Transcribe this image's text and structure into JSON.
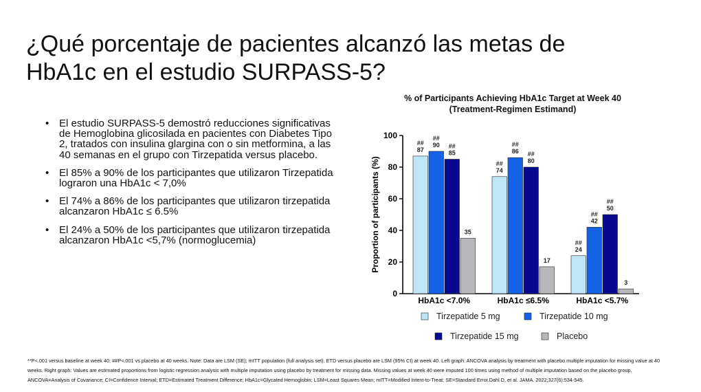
{
  "page": {
    "title": "¿Qué porcentaje de pacientes alcanzó las metas de HbA1c en el estudio SURPASS-5?",
    "bullet_symbol": "•",
    "bullets": [
      "El estudio SURPASS-5 demostró reducciones significativas de Hemoglobina glicosilada en pacientes con Diabetes Tipo 2, tratados con insulina glargina con o sin metformina, a las 40 semanas en el grupo con Tirzepatida versus placebo.",
      "El  85% a 90% de los participantes que utilizaron Tirzepatida lograron una HbA1c < 7,0%",
      "El 74% a 86% de los participantes que utilizaron tirzepatida alcanzaron HbA1c ≤ 6.5%",
      "El 24% a 50% de los participantes que utilizaron tirzepatida alcanzaron HbA1c <5,7% (normoglucemia)"
    ],
    "footnote": "**P<.001 versus baseline at week 40; ##P<.001 vs placebo at 40 weeks. Note: Data are LSM (SE); mITT population (full analysis set). ETD versus placebo are LSM (95% CI) at week 40. Left graph: ANCOVA analysis by treatment with placebo multiple imputation for missing value at 40 weeks. Right graph: Values are estimated proportions from logistic regression analysis with multiple imputation using placebo by treatment for missing data. Missing values at week 40 were imputed 100 times using method of multiple imputation based on the placebo group. ANCOVA=Analysis of Covariance; CI=Confidence Interval; ETD=Estimated Treatment Difference; HbA1c=Glycated Hemoglobin; LSM=Least Squares Mean; mITT=Modified Intent-to-Treat; SE=Standard Error.Dahl D, et al. JAMA. 2022;327(6):534-545."
  },
  "chart_data": {
    "type": "bar",
    "title": "% of Participants Achieving HbA1c Target at Week 40",
    "subtitle": "(Treatment-Regimen Estimand)",
    "ylabel": "Proportion of participants (%)",
    "ylim": [
      0,
      100
    ],
    "yticks": [
      "0",
      "20",
      "40",
      "60",
      "80",
      "100"
    ],
    "categories": [
      "HbA1c <7.0%",
      "HbA1c ≤6.5%",
      "HbA1c <5.7%"
    ],
    "significance_marker": "##",
    "series": [
      {
        "name": "Tirzepatide 5 mg",
        "color": "#bfe6f7",
        "values": [
          87,
          74,
          24
        ],
        "sig": [
          true,
          true,
          true
        ]
      },
      {
        "name": "Tirzepatide 10 mg",
        "color": "#1463e6",
        "values": [
          90,
          86,
          42
        ],
        "sig": [
          true,
          true,
          true
        ]
      },
      {
        "name": "Tirzepatide 15 mg",
        "color": "#070a8f",
        "values": [
          85,
          80,
          50
        ],
        "sig": [
          true,
          true,
          true
        ]
      },
      {
        "name": "Placebo",
        "color": "#b8b8bc",
        "values": [
          35,
          17,
          3
        ],
        "sig": [
          false,
          false,
          false
        ]
      }
    ],
    "legend_position": "bottom"
  }
}
